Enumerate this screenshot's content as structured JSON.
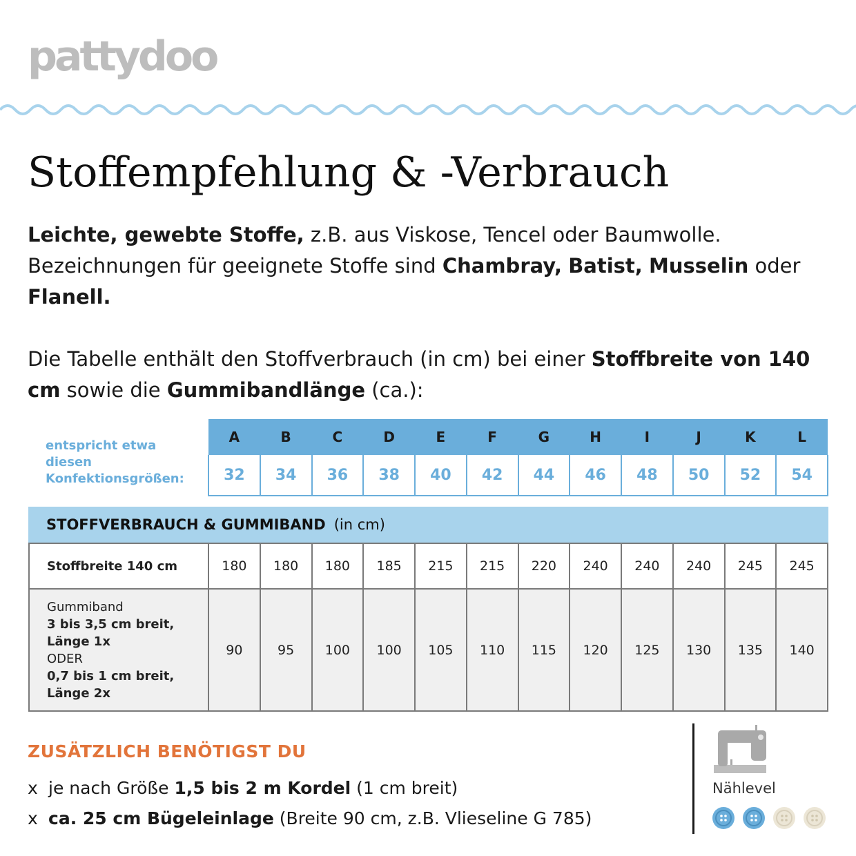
{
  "brand": "pattydoo",
  "title": "Stoffempfehlung & -Verbrauch",
  "intro": {
    "p1_bold": "Leichte, gewebte Stoffe,",
    "p1_text": " z.B. aus Viskose, Tencel oder Baumwolle. Bezeichnungen für geeignete Stoffe sind ",
    "fabric1": "Chambray,",
    "fabric2": "Batist,",
    "fabric3": "Musselin",
    "p1_or": " oder ",
    "fabric4": "Flanell.",
    "p2_text1": "Die Tabelle enthält den Stoffverbrauch (in cm) bei einer ",
    "p2_bold1": "Stoffbreite von 140 cm",
    "p2_text2": " sowie die ",
    "p2_bold2": "Gummibandlänge",
    "p2_text3": " (ca.):"
  },
  "size_table": {
    "label": "entspricht etwa diesen Konfektionsgrößen:",
    "letters": [
      "A",
      "B",
      "C",
      "D",
      "E",
      "F",
      "G",
      "H",
      "I",
      "J",
      "K",
      "L"
    ],
    "numbers": [
      "32",
      "34",
      "36",
      "38",
      "40",
      "42",
      "44",
      "46",
      "48",
      "50",
      "52",
      "54"
    ]
  },
  "usage": {
    "header_bold": "STOFFVERBRAUCH & GUMMIBAND",
    "header_unit": "(in cm)",
    "rows": [
      {
        "label": "Stoffbreite 140 cm",
        "values": [
          "180",
          "180",
          "180",
          "185",
          "215",
          "215",
          "220",
          "240",
          "240",
          "240",
          "245",
          "245"
        ]
      },
      {
        "label_line1": "Gummiband",
        "label_line2": "3 bis 3,5 cm breit,",
        "label_line3": "Länge 1x",
        "label_line4": "ODER",
        "label_line5": "0,7 bis 1 cm breit,",
        "label_line6": "Länge 2x",
        "values": [
          "90",
          "95",
          "100",
          "100",
          "105",
          "110",
          "115",
          "120",
          "125",
          "130",
          "135",
          "140"
        ]
      }
    ]
  },
  "extras": {
    "heading": "ZUSÄTZLICH BENÖTIGST DU",
    "bullet": "x",
    "item1_pre": "je nach Größe ",
    "item1_bold": "1,5 bis 2 m Kordel",
    "item1_post": " (1 cm breit)",
    "item2_bold": "ca. 25 cm Bügeleinlage",
    "item2_post": " (Breite 90 cm, z.B. Vlieseline G 785)"
  },
  "sewing_level": {
    "label": "Nählevel",
    "icon": "sewing-machine-icon",
    "level": 2,
    "max": 4,
    "active_color": "#6aaedb",
    "inactive_color": "#ece6d6"
  },
  "colors": {
    "accent_blue": "#6aaedb",
    "light_blue": "#a8d3ec",
    "orange": "#e2743a",
    "logo_gray": "#bdbdbd"
  }
}
